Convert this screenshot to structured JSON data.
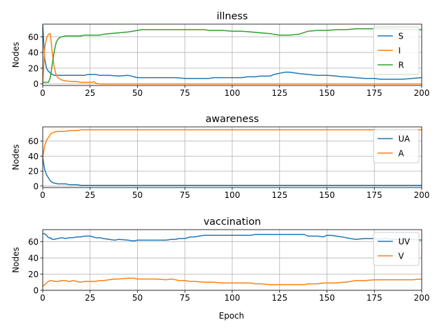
{
  "figure": {
    "xlabel": "Epoch"
  },
  "chart_data": [
    {
      "type": "line",
      "title": "illness",
      "xlabel": "",
      "ylabel": "Nodes",
      "xlim": [
        0,
        200
      ],
      "ylim": [
        -2,
        76
      ],
      "xticks": [
        0,
        25,
        50,
        75,
        100,
        125,
        150,
        175,
        200
      ],
      "yticks": [
        0,
        20,
        40,
        60
      ],
      "grid": true,
      "legend": "upper-right",
      "series": [
        {
          "name": "S",
          "color": "#1f77b4",
          "x": [
            0,
            1,
            2,
            3,
            4,
            5,
            6,
            7,
            8,
            9,
            10,
            12,
            14,
            16,
            18,
            20,
            22,
            24,
            26,
            28,
            30,
            35,
            40,
            45,
            50,
            52,
            55,
            60,
            65,
            70,
            75,
            80,
            85,
            88,
            90,
            95,
            100,
            105,
            108,
            112,
            115,
            118,
            120,
            122,
            124,
            126,
            128,
            130,
            133,
            136,
            140,
            145,
            150,
            155,
            158,
            160,
            165,
            170,
            175,
            178,
            182,
            186,
            190,
            195,
            200
          ],
          "y": [
            75,
            32,
            20,
            16,
            14,
            12,
            11,
            11,
            11,
            11,
            11,
            11,
            11,
            11,
            11,
            11,
            11,
            12,
            12,
            12,
            11,
            11,
            10,
            11,
            8,
            8,
            8,
            8,
            8,
            8,
            7,
            7,
            7,
            7,
            8,
            8,
            8,
            8,
            9,
            9,
            10,
            10,
            10,
            12,
            13,
            14,
            15,
            15,
            14,
            13,
            12,
            11,
            11,
            10,
            9,
            9,
            8,
            7,
            7,
            6,
            6,
            6,
            6,
            7,
            8
          ]
        },
        {
          "name": "I",
          "color": "#ff7f0e",
          "x": [
            0,
            1,
            2,
            3,
            4,
            5,
            6,
            7,
            8,
            10,
            12,
            15,
            18,
            20,
            22,
            24,
            26,
            27,
            28,
            30,
            40,
            60,
            80,
            100,
            120,
            140,
            160,
            180,
            200
          ],
          "y": [
            0,
            45,
            58,
            63,
            64,
            40,
            22,
            12,
            8,
            5,
            4,
            3,
            3,
            2,
            2,
            2,
            2,
            3,
            1,
            0,
            0,
            0,
            0,
            0,
            0,
            0,
            0,
            0,
            0
          ]
        },
        {
          "name": "R",
          "color": "#2ca02c",
          "x": [
            0,
            1,
            2,
            3,
            4,
            5,
            6,
            7,
            8,
            9,
            10,
            12,
            14,
            16,
            18,
            20,
            22,
            25,
            28,
            30,
            32,
            35,
            40,
            45,
            50,
            52,
            55,
            60,
            65,
            70,
            75,
            80,
            85,
            88,
            90,
            95,
            100,
            105,
            110,
            115,
            120,
            122,
            125,
            130,
            135,
            140,
            145,
            150,
            155,
            160,
            165,
            170,
            175,
            180,
            185,
            190,
            195,
            200
          ],
          "y": [
            2,
            2,
            2,
            2,
            8,
            25,
            40,
            52,
            57,
            59,
            60,
            61,
            61,
            61,
            61,
            61,
            62,
            62,
            62,
            62,
            63,
            64,
            65,
            66,
            68,
            69,
            69,
            69,
            69,
            69,
            69,
            69,
            69,
            68,
            68,
            68,
            67,
            67,
            66,
            65,
            64,
            63,
            62,
            62,
            63,
            67,
            68,
            68,
            69,
            69,
            70,
            70,
            70,
            70,
            70,
            69,
            69,
            69
          ]
        }
      ]
    },
    {
      "type": "line",
      "title": "awareness",
      "xlabel": "",
      "ylabel": "Nodes",
      "xlim": [
        0,
        200
      ],
      "ylim": [
        -2,
        79
      ],
      "xticks": [
        0,
        25,
        50,
        75,
        100,
        125,
        150,
        175,
        200
      ],
      "yticks": [
        0,
        20,
        40,
        60
      ],
      "grid": true,
      "legend": "upper-right",
      "series": [
        {
          "name": "UA",
          "color": "#1f77b4",
          "x": [
            0,
            1,
            2,
            3,
            4,
            5,
            6,
            8,
            10,
            12,
            14,
            16,
            18,
            20,
            25,
            50,
            100,
            150,
            200
          ],
          "y": [
            38,
            22,
            15,
            11,
            7,
            5,
            4,
            3,
            3,
            3,
            2,
            2,
            2,
            1,
            1,
            1,
            1,
            1,
            1
          ]
        },
        {
          "name": "A",
          "color": "#ff7f0e",
          "x": [
            0,
            1,
            2,
            3,
            4,
            5,
            6,
            8,
            10,
            12,
            14,
            16,
            18,
            20,
            25,
            50,
            100,
            150,
            200
          ],
          "y": [
            38,
            54,
            61,
            65,
            69,
            71,
            72,
            73,
            73,
            73,
            74,
            74,
            74,
            75,
            75,
            75,
            75,
            75,
            75
          ]
        }
      ]
    },
    {
      "type": "line",
      "title": "vaccination",
      "xlabel": "Epoch",
      "ylabel": "Nodes",
      "xlim": [
        0,
        200
      ],
      "ylim": [
        0,
        75
      ],
      "xticks": [
        0,
        25,
        50,
        75,
        100,
        125,
        150,
        175,
        200
      ],
      "yticks": [
        0,
        20,
        40,
        60
      ],
      "grid": true,
      "legend": "upper-right",
      "series": [
        {
          "name": "UV",
          "color": "#1f77b4",
          "x": [
            0,
            1,
            2,
            3,
            4,
            5,
            6,
            8,
            10,
            12,
            14,
            16,
            18,
            20,
            22,
            25,
            28,
            30,
            32,
            35,
            38,
            40,
            45,
            48,
            50,
            55,
            60,
            65,
            68,
            70,
            72,
            75,
            78,
            80,
            85,
            90,
            95,
            100,
            105,
            110,
            112,
            115,
            120,
            125,
            130,
            135,
            138,
            140,
            142,
            145,
            148,
            150,
            152,
            155,
            158,
            160,
            165,
            170,
            175,
            178,
            180,
            185,
            190,
            195,
            200
          ],
          "y": [
            70,
            70,
            68,
            65,
            65,
            63,
            63,
            64,
            65,
            64,
            65,
            65,
            66,
            66,
            67,
            67,
            65,
            65,
            64,
            63,
            62,
            63,
            62,
            61,
            62,
            62,
            62,
            62,
            63,
            63,
            64,
            64,
            66,
            66,
            68,
            68,
            68,
            68,
            68,
            68,
            69,
            69,
            69,
            69,
            69,
            69,
            69,
            67,
            67,
            67,
            66,
            68,
            68,
            67,
            66,
            65,
            63,
            64,
            64,
            63,
            64,
            63,
            63,
            63,
            62
          ]
        },
        {
          "name": "V",
          "color": "#ff7f0e",
          "x": [
            0,
            1,
            2,
            3,
            4,
            5,
            6,
            8,
            10,
            12,
            14,
            16,
            18,
            20,
            22,
            25,
            28,
            30,
            32,
            35,
            38,
            40,
            45,
            48,
            50,
            55,
            60,
            65,
            68,
            70,
            72,
            75,
            78,
            80,
            85,
            90,
            95,
            100,
            105,
            110,
            112,
            115,
            120,
            125,
            130,
            135,
            138,
            140,
            142,
            145,
            148,
            150,
            152,
            155,
            158,
            160,
            165,
            170,
            175,
            178,
            180,
            185,
            190,
            195,
            200
          ],
          "y": [
            5,
            7,
            9,
            11,
            12,
            12,
            11,
            11,
            12,
            12,
            11,
            12,
            11,
            10,
            11,
            11,
            11,
            12,
            12,
            13,
            14,
            14,
            15,
            15,
            14,
            14,
            14,
            13,
            14,
            13,
            12,
            12,
            11,
            11,
            10,
            10,
            9,
            9,
            9,
            9,
            8,
            8,
            7,
            7,
            7,
            7,
            7,
            8,
            8,
            8,
            9,
            9,
            9,
            9,
            10,
            10,
            12,
            12,
            13,
            13,
            13,
            13,
            13,
            13,
            14
          ]
        }
      ]
    }
  ]
}
